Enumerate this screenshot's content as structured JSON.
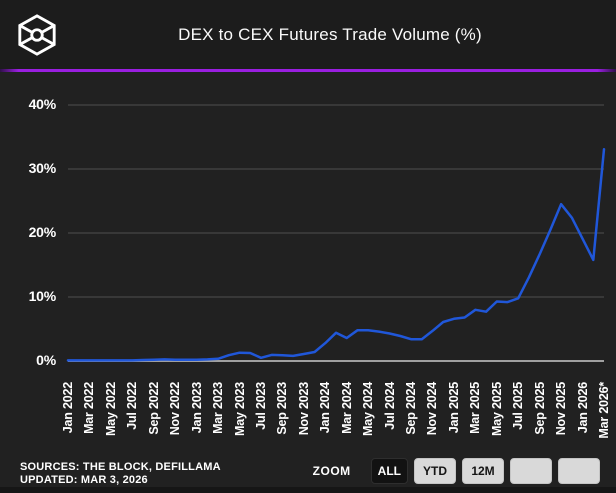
{
  "header": {
    "title": "DEX to CEX Futures Trade Volume (%)",
    "logo_icon": "the-block-logo"
  },
  "colors": {
    "background": "#212121",
    "header_background": "#1c1c1c",
    "divider_purple": "#9a1fe0",
    "line_blue": "#2057d9",
    "gridline": "#414141",
    "zero_axis": "#a0a0a0",
    "text": "#ffffff",
    "button_light": "#d9d9d9",
    "button_active_dark": "#121212"
  },
  "chart_data": {
    "type": "line",
    "title": "DEX to CEX Futures Trade Volume (%)",
    "xlabel": "",
    "ylabel": "",
    "ylim": [
      0,
      40
    ],
    "ytick_labels": [
      "0%",
      "10%",
      "20%",
      "30%",
      "40%"
    ],
    "ytick_values": [
      0,
      10,
      20,
      30,
      40
    ],
    "xtick_every": 2,
    "grid": true,
    "legend": false,
    "x": [
      "Jan 2022",
      "Feb 2022",
      "Mar 2022",
      "Apr 2022",
      "May 2022",
      "Jun 2022",
      "Jul 2022",
      "Aug 2022",
      "Sep 2022",
      "Oct 2022",
      "Nov 2022",
      "Dec 2022",
      "Jan 2023",
      "Feb 2023",
      "Mar 2023",
      "Apr 2023",
      "May 2023",
      "Jun 2023",
      "Jul 2023",
      "Aug 2023",
      "Sep 2023",
      "Oct 2023",
      "Nov 2023",
      "Dec 2023",
      "Jan 2024",
      "Feb 2024",
      "Mar 2024",
      "Apr 2024",
      "May 2024",
      "Jun 2024",
      "Jul 2024",
      "Aug 2024",
      "Sep 2024",
      "Oct 2024",
      "Nov 2024",
      "Dec 2024",
      "Jan 2025",
      "Feb 2025",
      "Mar 2025",
      "Apr 2025",
      "May 2025",
      "Jun 2025",
      "Jul 2025",
      "Aug 2025",
      "Sep 2025",
      "Oct 2025",
      "Nov 2025",
      "Dec 2025",
      "Jan 2026",
      "Feb 2026",
      "Mar 2026*"
    ],
    "series": [
      {
        "name": "DEX to CEX Futures Trade Volume (%)",
        "values": [
          0.1,
          0.1,
          0.1,
          0.1,
          0.1,
          0.1,
          0.1,
          0.15,
          0.2,
          0.25,
          0.2,
          0.2,
          0.2,
          0.25,
          0.35,
          0.9,
          1.3,
          1.25,
          0.5,
          0.95,
          0.9,
          0.8,
          1.1,
          1.4,
          2.8,
          4.4,
          3.6,
          4.8,
          4.8,
          4.6,
          4.3,
          3.9,
          3.4,
          3.4,
          4.7,
          6.1,
          6.6,
          6.8,
          8.0,
          7.7,
          9.3,
          9.2,
          9.8,
          13.1,
          16.7,
          20.5,
          24.5,
          22.4,
          19.1,
          15.8,
          33.1
        ]
      }
    ]
  },
  "footer": {
    "sources_line1": "SOURCES: THE BLOCK, DEFILLAMA",
    "sources_line2": "UPDATED: MAR 3, 2026",
    "zoom_label": "ZOOM",
    "buttons": [
      {
        "label": "ALL",
        "active": true
      },
      {
        "label": "YTD",
        "active": false
      },
      {
        "label": "12M",
        "active": false
      },
      {
        "label": "",
        "active": false
      },
      {
        "label": "",
        "active": false
      }
    ]
  }
}
